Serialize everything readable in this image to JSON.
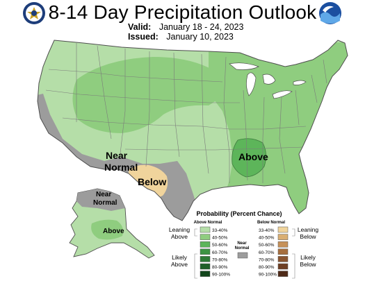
{
  "title": "8-14 Day Precipitation Outlook",
  "valid_label": "Valid:",
  "valid_value": "January 18 - 24, 2023",
  "issued_label": "Issued:",
  "issued_value": "January 10, 2023",
  "map_labels": {
    "near_normal": [
      "Near",
      "Normal"
    ],
    "below": "Below",
    "above": "Above",
    "alaska_near_normal": [
      "Near",
      "Normal"
    ],
    "alaska_above": "Above"
  },
  "legend": {
    "title": "Probability (Percent Chance)",
    "above_header": "Above Normal",
    "below_header": "Below Normal",
    "near_normal_label": [
      "Near",
      "Normal"
    ],
    "leaning_above": [
      "Leaning",
      "Above"
    ],
    "likely_above": [
      "Likely",
      "Above"
    ],
    "leaning_below": [
      "Leaning",
      "Below"
    ],
    "likely_below": [
      "Likely",
      "Below"
    ],
    "above_bins": [
      "33-40%",
      "40-50%",
      "50-60%",
      "60-70%",
      "70-80%",
      "80-90%",
      "90-100%"
    ],
    "below_bins": [
      "33-40%",
      "40-50%",
      "50-60%",
      "60-70%",
      "70-80%",
      "80-90%",
      "90-100%"
    ],
    "above_colors": [
      "#b5dea8",
      "#8fcd7f",
      "#5db55a",
      "#3d9443",
      "#2d7a35",
      "#1f5f28",
      "#12461b"
    ],
    "below_colors": [
      "#f0d49c",
      "#d9ae72",
      "#c6915a",
      "#a66f3f",
      "#8a5530",
      "#6e3e23",
      "#4f2a18"
    ],
    "near_normal_color": "#9c9c9c"
  },
  "colors": {
    "water": "#ffffff",
    "state_lines": "#7a7a7a",
    "border": "#4d4d4d"
  }
}
